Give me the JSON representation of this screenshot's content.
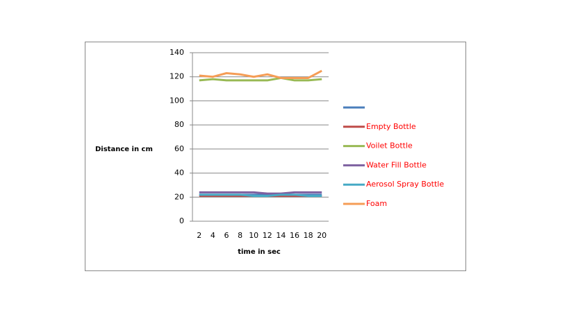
{
  "chart_data": {
    "type": "line",
    "y_label": "Distance  in cm",
    "x_label": "time in sec",
    "categories": [
      2,
      4,
      6,
      8,
      10,
      12,
      14,
      16,
      18,
      20
    ],
    "ylim": [
      0,
      140
    ],
    "yticks": [
      0,
      20,
      40,
      60,
      80,
      100,
      120,
      140
    ],
    "grid": true,
    "series": [
      {
        "name": null,
        "color": "#4a7ebb",
        "values": [
          22,
          22,
          22,
          22,
          22,
          22,
          22,
          22,
          22,
          22
        ]
      },
      {
        "name": "Empty Bottle",
        "color": "#be4b48",
        "values": [
          21,
          21,
          21,
          21,
          21,
          21,
          21,
          21,
          21,
          21
        ]
      },
      {
        "name": "Voilet Bottle",
        "color": "#98b954",
        "values": [
          117,
          118,
          117,
          117,
          117,
          117,
          119,
          117,
          117,
          118
        ]
      },
      {
        "name": "Water Fill Bottle",
        "color": "#7d60a0",
        "values": [
          24,
          24,
          24,
          24,
          24,
          23,
          23,
          24,
          24,
          24
        ]
      },
      {
        "name": "Aerosol Spray Bottle",
        "color": "#46aac5",
        "values": [
          22,
          22,
          22,
          22,
          21,
          21,
          22,
          22,
          21,
          21
        ]
      },
      {
        "name": "Foam",
        "color": "#f59d56",
        "values": [
          121,
          120,
          123,
          122,
          120,
          122,
          119,
          119,
          119,
          125
        ]
      }
    ]
  }
}
